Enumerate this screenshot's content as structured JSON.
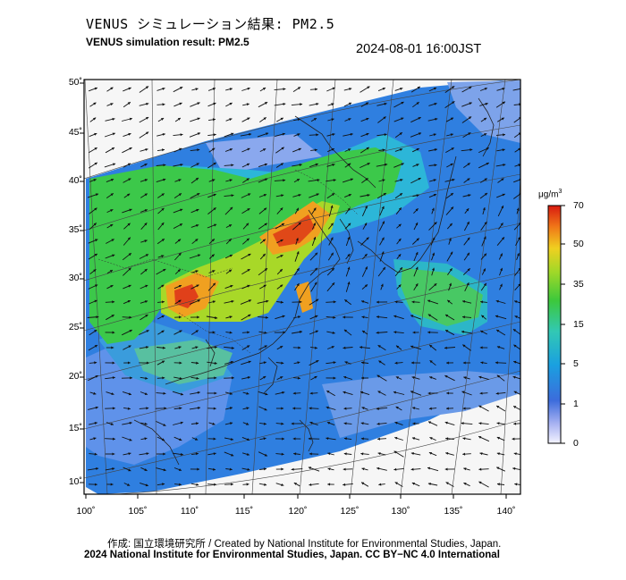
{
  "title_jp": "VENUS シミュレーション結果: PM2.5",
  "title_en": "VENUS simulation result: PM2.5",
  "timestamp": "2024-08-01 16:00JST",
  "lat_ticks": [
    "50˚",
    "45˚",
    "40˚",
    "35˚",
    "30˚",
    "25˚",
    "20˚",
    "15˚",
    "10˚"
  ],
  "lon_ticks": [
    "100˚",
    "105˚",
    "110˚",
    "115˚",
    "120˚",
    "125˚",
    "130˚",
    "135˚",
    "140˚"
  ],
  "colorbar": {
    "unit": "μg/m",
    "unit_sup": "3",
    "labels": [
      "70",
      "50",
      "35",
      "15",
      "5",
      "1",
      "0"
    ]
  },
  "credit_line1": "作成: 国立環境研究所 / Created by National Institute for Environmental Studies, Japan.",
  "credit_line2": "2024 National Institute for Environmental Studies, Japan. CC BY−NC 4.0 International"
}
